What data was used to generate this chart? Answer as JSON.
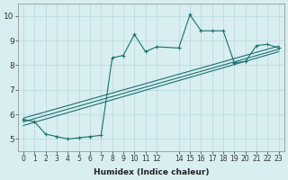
{
  "xlabel": "Humidex (Indice chaleur)",
  "xlim": [
    -0.5,
    23.5
  ],
  "ylim": [
    4.5,
    10.5
  ],
  "xtick_vals": [
    0,
    1,
    2,
    3,
    4,
    5,
    6,
    7,
    8,
    9,
    10,
    11,
    12,
    14,
    15,
    16,
    17,
    18,
    19,
    20,
    21,
    22,
    23
  ],
  "ytick_vals": [
    5,
    6,
    7,
    8,
    9,
    10
  ],
  "bg_color": "#d8eef0",
  "grid_color": "#b8d8dc",
  "line_color": "#1a7070",
  "main_x": [
    0,
    1,
    2,
    3,
    4,
    5,
    6,
    7,
    8,
    9,
    10,
    11,
    12,
    14,
    15,
    16,
    17,
    18,
    19,
    20,
    21,
    22,
    23
  ],
  "main_y": [
    5.8,
    5.7,
    5.2,
    5.1,
    5.0,
    5.05,
    5.1,
    5.15,
    8.3,
    8.4,
    9.25,
    8.55,
    8.75,
    8.7,
    10.05,
    9.4,
    9.4,
    9.4,
    8.1,
    8.15,
    8.8,
    8.85,
    8.7
  ],
  "line1_x": [
    0,
    23
  ],
  "line1_y": [
    5.55,
    8.55
  ],
  "line2_x": [
    0,
    23
  ],
  "line2_y": [
    5.7,
    8.65
  ],
  "line3_x": [
    0,
    23
  ],
  "line3_y": [
    5.85,
    8.78
  ],
  "xlabel_fontsize": 6.5,
  "tick_fontsize_x": 5.5,
  "tick_fontsize_y": 6.5
}
